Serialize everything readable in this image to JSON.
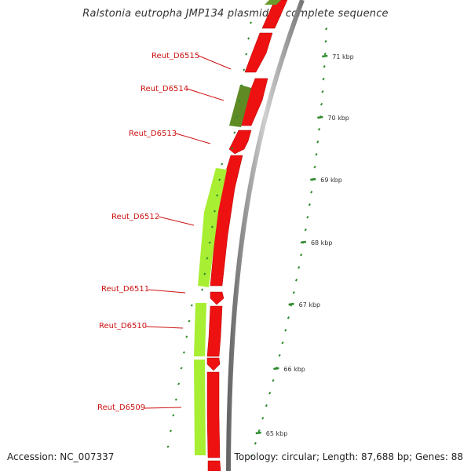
{
  "header": {
    "title": "Ralstonia eutropha JMP134 plasmid 1, complete sequence"
  },
  "footer": {
    "accession": "Accession: NC_007337",
    "summary": "Topology: circular; Length: 87,688 bp; Genes: 88"
  },
  "colors": {
    "forward_cds": "#ee1111",
    "reverse_cds_light": "#a8ee33",
    "reverse_cds_dark": "#5f8a24",
    "backbone": "#888888",
    "tick": "#2e8b2e",
    "label": "#cc1111"
  },
  "scale": {
    "ticks": [
      {
        "kbp": 71,
        "label": "71 kbp"
      },
      {
        "kbp": 70,
        "label": "70 kbp"
      },
      {
        "kbp": 69,
        "label": "69 kbp"
      },
      {
        "kbp": 68,
        "label": "68 kbp"
      },
      {
        "kbp": 67,
        "label": "67 kbp"
      },
      {
        "kbp": 66,
        "label": "66 kbp"
      },
      {
        "kbp": 65,
        "label": "65 kbp"
      }
    ]
  },
  "genes": [
    {
      "id": "Reut_D6515",
      "label": "Reut_D6515"
    },
    {
      "id": "Reut_D6514",
      "label": "Reut_D6514"
    },
    {
      "id": "Reut_D6513",
      "label": "Reut_D6513"
    },
    {
      "id": "Reut_D6512",
      "label": "Reut_D6512"
    },
    {
      "id": "Reut_D6511",
      "label": "Reut_D6511"
    },
    {
      "id": "Reut_D6510",
      "label": "Reut_D6510"
    },
    {
      "id": "Reut_D6509",
      "label": "Reut_D6509"
    }
  ]
}
